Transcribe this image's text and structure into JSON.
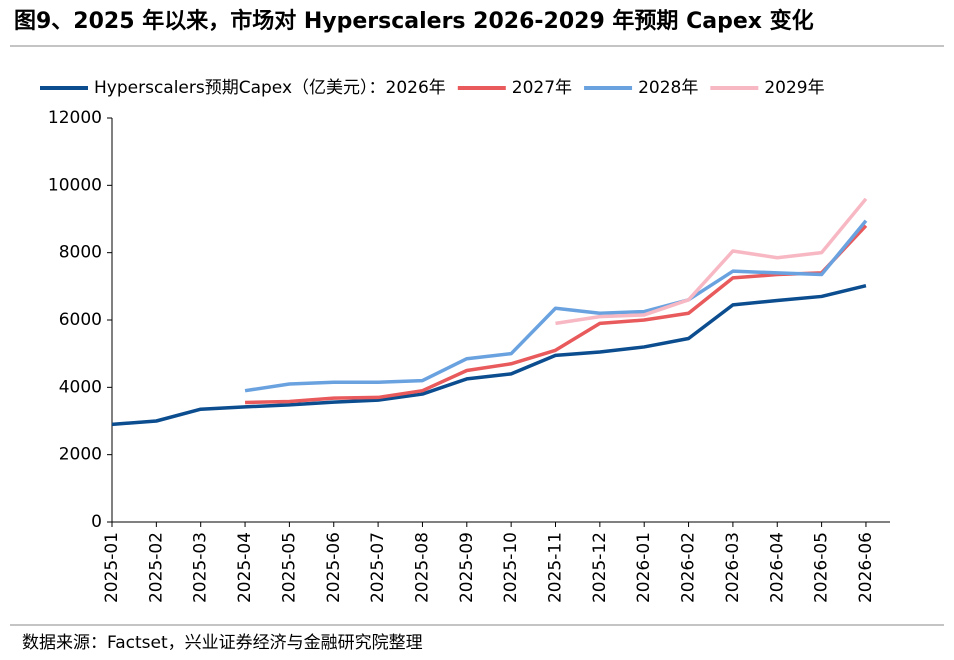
{
  "title": "图9、2025 年以来，市场对 Hyperscalers 2026-2029 年预期 Capex 变化",
  "source": "数据来源：Factset，兴业证券经济与金融研究院整理",
  "chart_data": {
    "type": "line",
    "x": [
      "2025-01",
      "2025-02",
      "2025-03",
      "2025-04",
      "2025-05",
      "2025-06",
      "2025-07",
      "2025-08",
      "2025-09",
      "2025-10",
      "2025-11",
      "2025-12",
      "2026-01",
      "2026-02",
      "2026-03",
      "2026-04",
      "2026-05",
      "2026-06"
    ],
    "series": [
      {
        "name": "Hyperscalers预期Capex（亿美元）：2026年",
        "color": "#0b4d8f",
        "values": [
          2900,
          3000,
          3350,
          3420,
          3480,
          3560,
          3620,
          3800,
          4250,
          4400,
          4950,
          5050,
          5200,
          5450,
          6450,
          6580,
          6700,
          7020
        ]
      },
      {
        "name": "2027年",
        "color": "#e85a5c",
        "values": [
          null,
          null,
          null,
          3550,
          3580,
          3680,
          3700,
          3900,
          4500,
          4700,
          5100,
          5900,
          6000,
          6200,
          7250,
          7350,
          7400,
          8800
        ]
      },
      {
        "name": "2028年",
        "color": "#6aa2e0",
        "values": [
          null,
          null,
          null,
          3900,
          4100,
          4150,
          4150,
          4200,
          4850,
          5000,
          6350,
          6200,
          6250,
          6600,
          7450,
          7400,
          7350,
          8950
        ]
      },
      {
        "name": "2029年",
        "color": "#f7b8c4",
        "values": [
          null,
          null,
          null,
          null,
          null,
          null,
          null,
          null,
          null,
          null,
          5900,
          6100,
          6150,
          6600,
          8050,
          7850,
          8000,
          9600
        ]
      }
    ],
    "ylim": [
      0,
      12000
    ],
    "yticks": [
      0,
      2000,
      4000,
      6000,
      8000,
      10000,
      12000
    ],
    "grid": false
  }
}
